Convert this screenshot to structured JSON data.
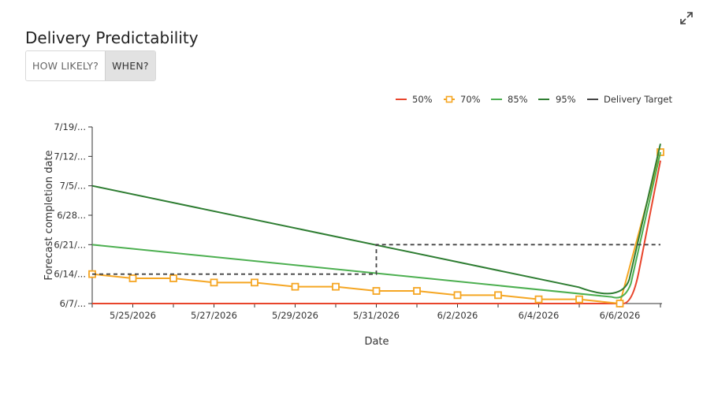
{
  "header": {
    "title": "Delivery Predictability",
    "expand_icon": "expand-arrows-icon"
  },
  "toggle": {
    "options": [
      "HOW LIKELY?",
      "WHEN?"
    ],
    "selected": "WHEN?"
  },
  "chart_data": {
    "type": "line",
    "xlabel": "Date",
    "ylabel": "Forecast completion date",
    "x": [
      "2026-05-24",
      "2026-05-25",
      "2026-05-26",
      "2026-05-27",
      "2026-05-28",
      "2026-05-29",
      "2026-05-30",
      "2026-05-31",
      "2026-06-01",
      "2026-06-02",
      "2026-06-03",
      "2026-06-04",
      "2026-06-05",
      "2026-06-06",
      "2026-06-07"
    ],
    "x_tick_labels": [
      "5/25/2026",
      "5/27/2026",
      "5/29/2026",
      "5/31/2026",
      "6/2/2026",
      "6/4/2026",
      "6/6/2026"
    ],
    "y_tick_labels": [
      "6/7/...",
      "6/14/...",
      "6/21/...",
      "6/28...",
      "7/5/...",
      "7/12/...",
      "7/19/..."
    ],
    "ylim": [
      "2026-06-07",
      "2026-07-19"
    ],
    "legend_position": "top-right",
    "series": [
      {
        "name": "50%",
        "color": "#e8452c",
        "values": [
          "2026-06-07",
          "2026-06-07",
          "2026-06-07",
          "2026-06-07",
          "2026-06-07",
          "2026-06-07",
          "2026-06-07",
          "2026-06-07",
          "2026-06-07",
          "2026-06-07",
          "2026-06-07",
          "2026-06-07",
          "2026-06-07",
          "2026-06-07",
          "2026-07-11"
        ]
      },
      {
        "name": "70%",
        "color": "#f5a623",
        "marker": "square",
        "values": [
          "2026-06-14",
          "2026-06-13",
          "2026-06-13",
          "2026-06-12",
          "2026-06-12",
          "2026-06-11",
          "2026-06-11",
          "2026-06-10",
          "2026-06-10",
          "2026-06-09",
          "2026-06-09",
          "2026-06-08",
          "2026-06-08",
          "2026-06-07",
          "2026-07-13"
        ]
      },
      {
        "name": "85%",
        "color": "#4caf50",
        "values": [
          "2026-06-21",
          "2026-06-20.5",
          "2026-06-20",
          "2026-06-19.5",
          "2026-06-19",
          "2026-06-18.5",
          "2026-06-18",
          "2026-06-17",
          "2026-06-16.5",
          "2026-06-16",
          "2026-06-15",
          "2026-06-14",
          "2026-06-13",
          "2026-06-08",
          "2026-07-13"
        ]
      },
      {
        "name": "95%",
        "color": "#2e7d32",
        "values": [
          "2026-07-05",
          "2026-07-04",
          "2026-07-03",
          "2026-07-01.5",
          "2026-07-00",
          "2026-06-29",
          "2026-06-27",
          "2026-06-21",
          "2026-06-24",
          "2026-06-23",
          "2026-06-21",
          "2026-06-19",
          "2026-06-17",
          "2026-06-09",
          "2026-07-15"
        ]
      },
      {
        "name": "Delivery Target",
        "color": "#444444",
        "dashed": true,
        "values": [
          "2026-06-14",
          "2026-06-14",
          "2026-06-14",
          "2026-06-14",
          "2026-06-14",
          "2026-06-14",
          "2026-06-14",
          "2026-06-14/2026-06-21",
          "2026-06-21",
          "2026-06-21",
          "2026-06-21",
          "2026-06-21",
          "2026-06-21",
          "2026-06-21",
          "2026-06-21"
        ]
      }
    ]
  }
}
